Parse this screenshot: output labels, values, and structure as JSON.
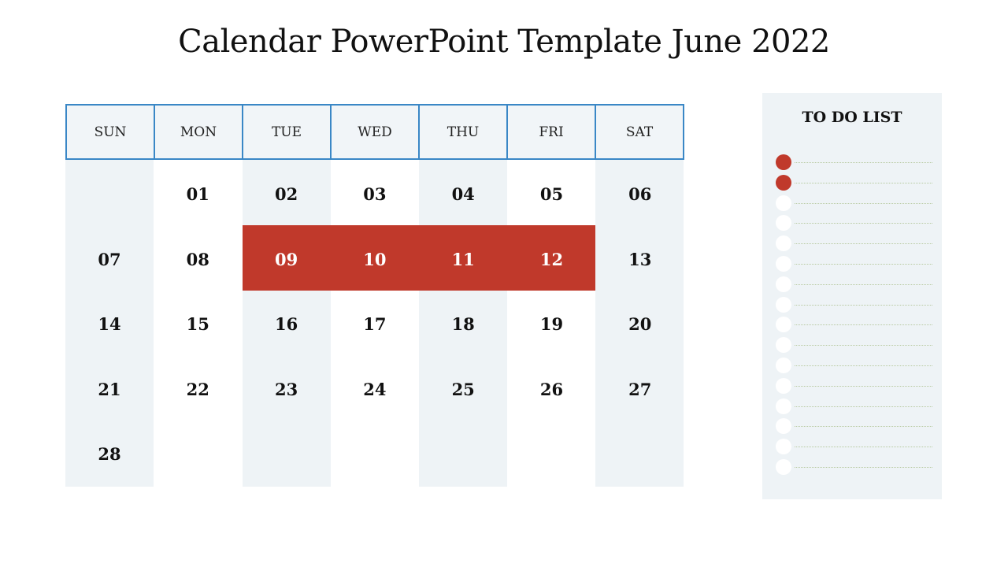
{
  "title": "Calendar PowerPoint Template June 2022",
  "calendar": {
    "weekdays": [
      "SUN",
      "MON",
      "TUE",
      "WED",
      "THU",
      "FRI",
      "SAT"
    ],
    "weeks": [
      [
        "",
        "01",
        "02",
        "03",
        "04",
        "05",
        "06"
      ],
      [
        "07",
        "08",
        "09",
        "10",
        "11",
        "12",
        "13"
      ],
      [
        "14",
        "15",
        "16",
        "17",
        "18",
        "19",
        "20"
      ],
      [
        "21",
        "22",
        "23",
        "24",
        "25",
        "26",
        "27"
      ],
      [
        "28",
        "",
        "",
        "",
        "",
        "",
        ""
      ]
    ],
    "highlighted_days": [
      "09",
      "10",
      "11",
      "12"
    ]
  },
  "todo": {
    "title": "TO DO LIST",
    "items_checked": [
      true,
      true,
      false,
      false,
      false,
      false,
      false,
      false,
      false,
      false,
      false,
      false,
      false,
      false,
      false,
      false
    ]
  },
  "colors": {
    "accent": "#c0392b",
    "header_border": "#3a87c6",
    "column_shade": "#eef3f6"
  }
}
